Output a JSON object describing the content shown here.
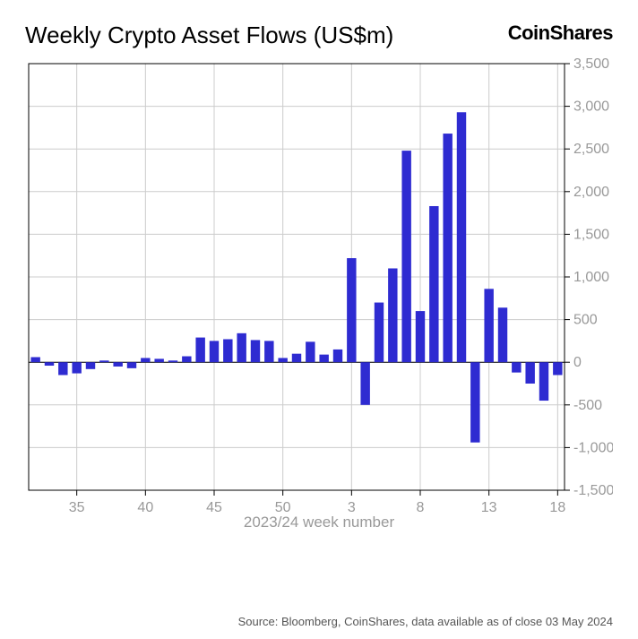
{
  "title": "Weekly Crypto Asset Flows (US$m)",
  "brand": "CoinShares",
  "xlabel": "2023/24 week number",
  "source": "Source: Bloomberg, CoinShares, data available as of close 03 May 2024",
  "chart": {
    "type": "bar",
    "bar_color": "#2e2bd1",
    "background_color": "#ffffff",
    "grid_color": "#cccccc",
    "axis_color": "#000000",
    "tick_label_color": "#999999",
    "tick_fontsize": 16,
    "title_fontsize": 26,
    "ylim": [
      -1500,
      3500
    ],
    "ytick_step": 500,
    "yticks": [
      -1500,
      -1000,
      -500,
      0,
      500,
      1000,
      1500,
      2000,
      2500,
      3000,
      3500
    ],
    "xticks_positions": [
      3,
      8,
      13,
      18,
      23,
      28,
      33,
      38
    ],
    "xticks_labels": [
      "35",
      "40",
      "45",
      "50",
      "3",
      "8",
      "13",
      "18"
    ],
    "bar_width": 0.68,
    "values": [
      60,
      -40,
      -150,
      -130,
      -80,
      20,
      -50,
      -70,
      50,
      40,
      20,
      70,
      290,
      250,
      270,
      340,
      260,
      250,
      50,
      100,
      240,
      90,
      150,
      1220,
      -500,
      700,
      1100,
      2480,
      600,
      1830,
      2680,
      2930,
      -940,
      860,
      640,
      -120,
      -250,
      -450,
      -150
    ]
  }
}
